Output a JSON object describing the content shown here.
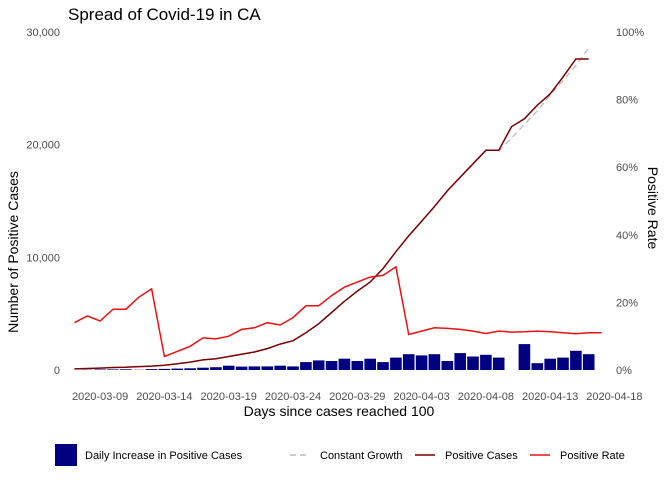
{
  "chart_data": {
    "type": "bar+line",
    "title": "Spread of Covid-19 in CA",
    "xlabel": "Days since cases reached 100",
    "ylabel": "Number of Positive Cases",
    "y2label": "Positive Rate",
    "ylim": [
      0,
      30000
    ],
    "y2lim": [
      0,
      1
    ],
    "y_ticks": [
      "0",
      "10,000",
      "20,000",
      "30,000"
    ],
    "y2_ticks": [
      "0%",
      "20%",
      "40%",
      "60%",
      "80%",
      "100%"
    ],
    "x_tick_labels": [
      "2020-03-09",
      "2020-03-14",
      "2020-03-19",
      "2020-03-24",
      "2020-03-29",
      "2020-04-03",
      "2020-04-08",
      "2020-04-13",
      "2020-04-18"
    ],
    "start_date": "2020-03-07",
    "grid": false,
    "legend_position": "bottom",
    "colors": {
      "daily_increase": "#000080",
      "constant_growth": "#bbbbbb",
      "positive_cases": "#7a0000",
      "positive_rate": "#ee1111"
    },
    "series": [
      {
        "name": "Daily Increase in Positive Cases",
        "kind": "bar",
        "values": [
          20,
          40,
          50,
          60,
          20,
          80,
          100,
          120,
          150,
          200,
          250,
          380,
          300,
          320,
          320,
          380,
          320,
          700,
          850,
          800,
          1000,
          800,
          1000,
          700,
          1100,
          1400,
          1300,
          1400,
          800,
          1500,
          1200,
          1350,
          1100,
          0,
          2300,
          600,
          1000,
          1100,
          1700,
          1400
        ]
      },
      {
        "name": "Constant Growth",
        "kind": "line",
        "style": "dashed",
        "values": [
          null,
          null,
          null,
          null,
          null,
          null,
          null,
          null,
          null,
          null,
          null,
          null,
          null,
          null,
          null,
          null,
          null,
          null,
          null,
          null,
          null,
          null,
          null,
          null,
          null,
          null,
          null,
          null,
          null,
          null,
          null,
          null,
          null,
          19400,
          20600,
          21800,
          23000,
          24400,
          25700,
          27000,
          28600
        ]
      },
      {
        "name": "Positive Cases",
        "kind": "line",
        "values": [
          100,
          130,
          170,
          220,
          250,
          300,
          350,
          430,
          550,
          700,
          900,
          1000,
          1200,
          1400,
          1600,
          1900,
          2300,
          2600,
          3300,
          4100,
          5100,
          6100,
          7000,
          7800,
          9000,
          10500,
          11900,
          13200,
          14500,
          15900,
          17100,
          18300,
          19500,
          19500,
          21600,
          22300,
          23500,
          24500,
          26000,
          27600,
          27600
        ]
      },
      {
        "name": "Positive Rate",
        "kind": "line",
        "axis": "right",
        "values": [
          0.14,
          0.16,
          0.145,
          0.18,
          0.18,
          0.215,
          0.24,
          0.04,
          0.055,
          0.07,
          0.095,
          0.092,
          0.1,
          0.12,
          0.125,
          0.14,
          0.133,
          0.155,
          0.19,
          0.19,
          0.22,
          0.245,
          0.26,
          0.275,
          0.28,
          0.305,
          0.105,
          0.115,
          0.125,
          0.123,
          0.12,
          0.115,
          0.108,
          0.115,
          0.112,
          0.113,
          0.115,
          0.113,
          0.11,
          0.107,
          0.11,
          0.11
        ]
      }
    ]
  }
}
